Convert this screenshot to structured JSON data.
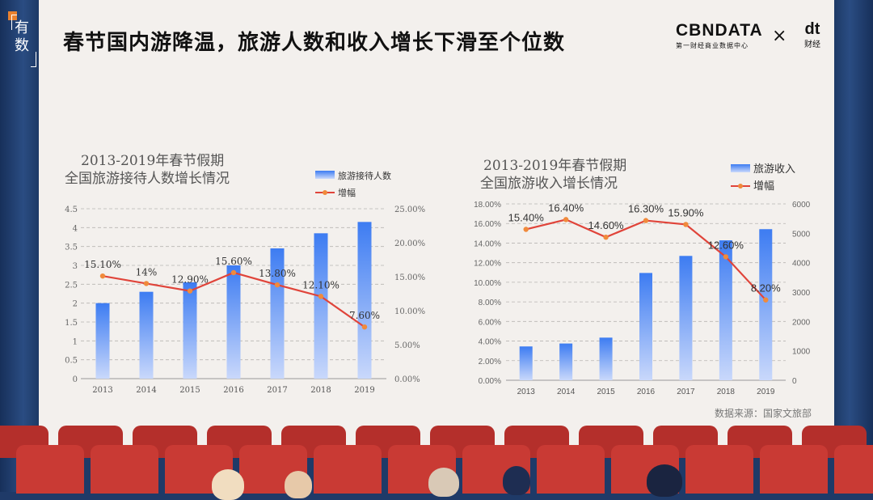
{
  "header": {
    "badge_text": "有数",
    "title": "春节国内游降温，旅游人数和收入增长下滑至个位数",
    "logo_main": "CBNDATA",
    "logo_sub": "第一财经商业数据中心",
    "times": "×",
    "logo2_main": "dt",
    "logo2_sub": "财经"
  },
  "source": "数据来源：国家文旅部",
  "colors": {
    "bar_top": "#3d7cf2",
    "bar_bottom": "#c9d8fb",
    "line": "#e0443a",
    "marker": "#f08a3c",
    "screen": "#f3f0ed",
    "curtain": "#1f3a68",
    "seat": "#c93a34"
  },
  "chart_data": [
    {
      "type": "bar",
      "title": "2013-2019年春节假期\n全国旅游接待人数增长情况",
      "categories": [
        "2013",
        "2014",
        "2015",
        "2016",
        "2017",
        "2018",
        "2019"
      ],
      "series": [
        {
          "name": "旅游接待人数",
          "axis": "left",
          "values": [
            2.0,
            2.3,
            2.55,
            3.0,
            3.45,
            3.85,
            4.15
          ]
        },
        {
          "name": "增幅",
          "type": "line",
          "axis": "right",
          "values": [
            15.1,
            14.0,
            12.9,
            15.6,
            13.8,
            12.1,
            7.6
          ],
          "labels": [
            "15.10%",
            "14%",
            "12.90%",
            "15.60%",
            "13.80%",
            "12.10%",
            "7.60%"
          ]
        }
      ],
      "y_left": {
        "min": 0,
        "max": 4.5,
        "ticks": [
          "0",
          "0.5",
          "1",
          "1.5",
          "2",
          "2.5",
          "3",
          "3.5",
          "4",
          "4.5"
        ]
      },
      "y_right": {
        "min": 0,
        "max": 25,
        "ticks": [
          "0.00%",
          "5.00%",
          "10.00%",
          "15.00%",
          "20.00%",
          "25.00%"
        ]
      },
      "grid": true,
      "legend": "top-right"
    },
    {
      "type": "bar",
      "title": "2013-2019年春节假期\n全国旅游收入增长情况",
      "categories": [
        "2013",
        "2014",
        "2015",
        "2016",
        "2017",
        "2018",
        "2019"
      ],
      "series": [
        {
          "name": "旅游收入",
          "axis": "right",
          "values": [
            1150,
            1250,
            1450,
            3650,
            4230,
            4760,
            5140
          ]
        },
        {
          "name": "增幅",
          "type": "line",
          "axis": "left",
          "values": [
            15.4,
            16.4,
            14.6,
            16.3,
            15.9,
            12.6,
            8.2
          ],
          "labels": [
            "15.40%",
            "16.40%",
            "14.60%",
            "16.30%",
            "15.90%",
            "12.60%",
            "8.20%"
          ]
        }
      ],
      "y_left": {
        "min": 0,
        "max": 18,
        "ticks": [
          "0.00%",
          "2.00%",
          "4.00%",
          "6.00%",
          "8.00%",
          "10.00%",
          "12.00%",
          "14.00%",
          "16.00%",
          "18.00%"
        ]
      },
      "y_right": {
        "min": 0,
        "max": 6000,
        "ticks": [
          "0",
          "1000",
          "2000",
          "3000",
          "4000",
          "5000",
          "6000"
        ]
      },
      "grid": true,
      "legend": "top-right"
    }
  ]
}
